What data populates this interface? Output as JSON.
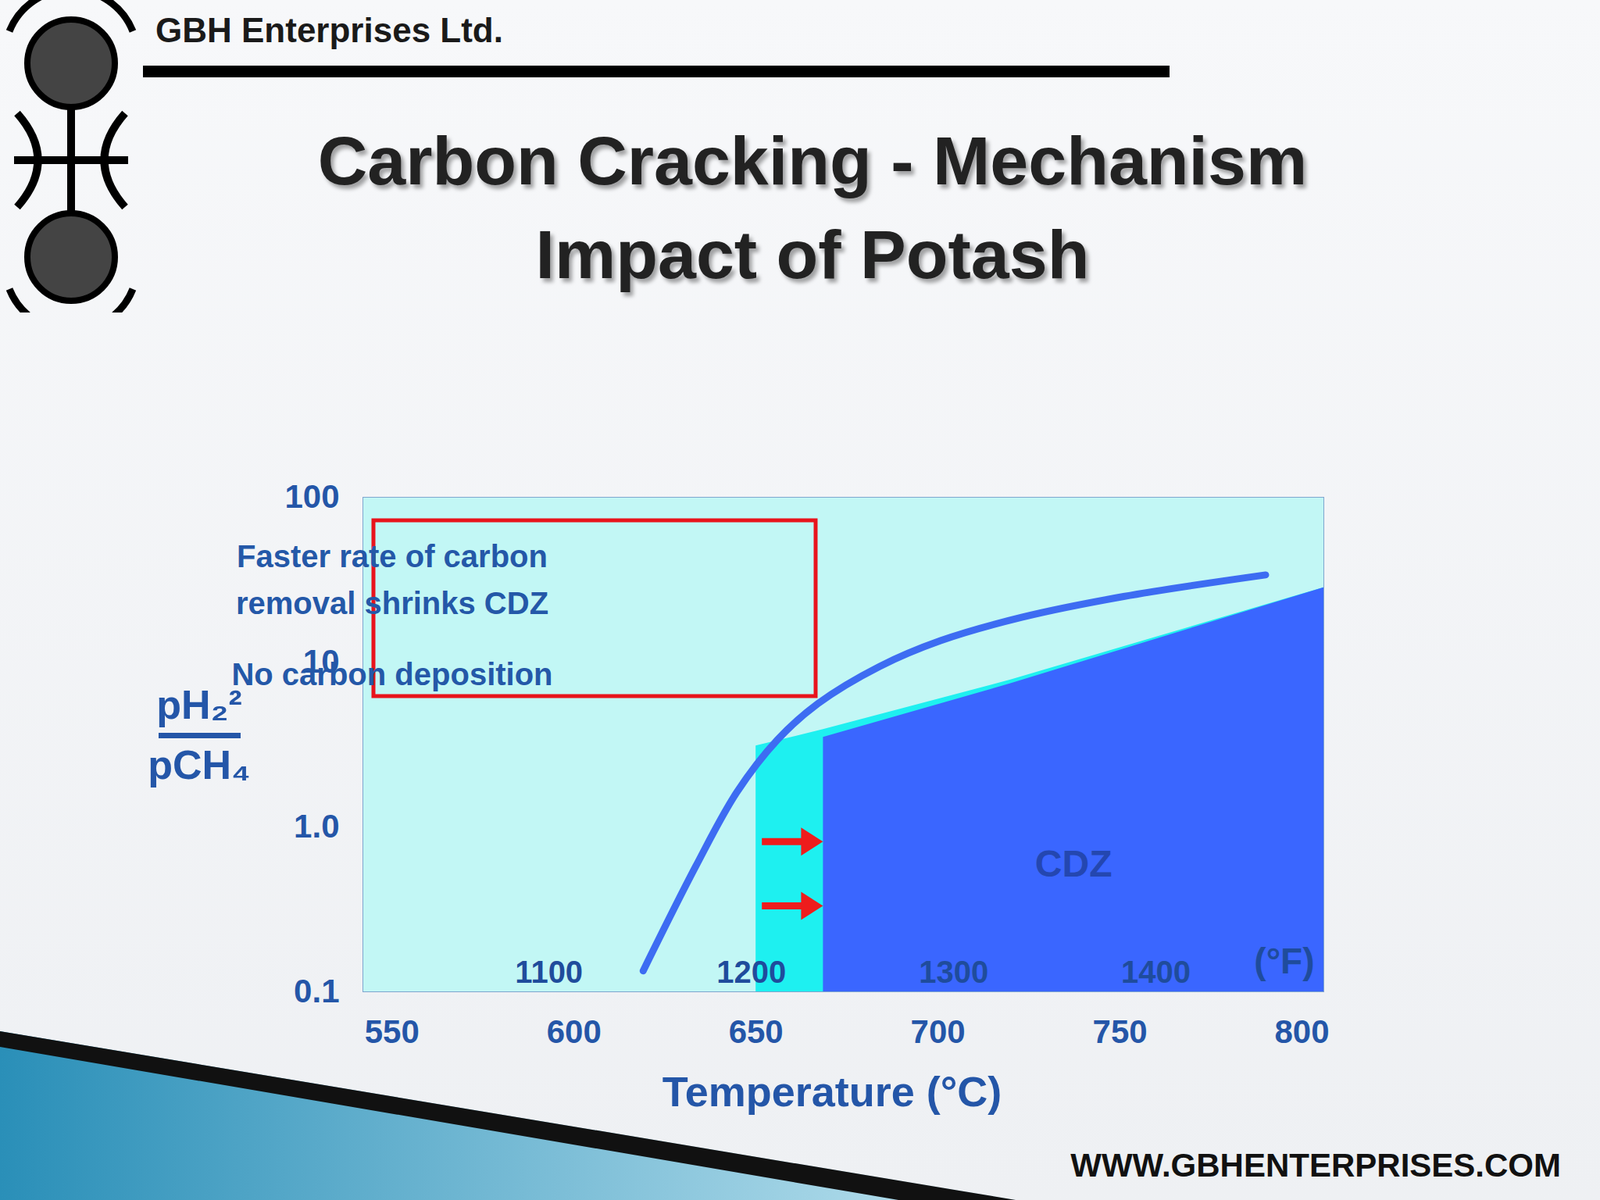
{
  "header": {
    "company": "GBH Enterprises Ltd.",
    "website": "WWW.GBHENTERPRISES.COM"
  },
  "chart_data": {
    "type": "line",
    "title": "Carbon Cracking - Mechanism",
    "subtitle": "Impact of Potash",
    "xlabel": "Temperature (°C)",
    "ylabel": {
      "numerator": "pH₂²",
      "denominator": "pCH₄"
    },
    "log": "y",
    "xlim": [
      542,
      806
    ],
    "xticks": [
      550,
      600,
      650,
      700,
      750,
      800
    ],
    "ylim": [
      0.1,
      100
    ],
    "yticks": [
      0.1,
      {
        "value": 1,
        "label": "1.0"
      },
      10,
      100
    ],
    "x2label": "(°F)",
    "x2lim": [
      1008,
      1483
    ],
    "x2ticks": [
      1100,
      1200,
      1300,
      1400
    ],
    "series": [
      {
        "type": "area",
        "color": "#1ef0f0",
        "x": [
          650,
          668.5,
          720,
          806
        ],
        "values": [
          3.1,
          3.9,
          7.8,
          28.3
        ]
      },
      {
        "name": "CDZ",
        "type": "area",
        "color": "#3a66ff",
        "x": [
          668.5,
          720,
          806
        ],
        "values": [
          3.5,
          7.4,
          28.3
        ]
      },
      {
        "type": "line",
        "color": "#3d6cf2",
        "x": [
          619,
          633.5,
          644.7,
          655.9,
          667,
          683.9,
          700.7,
          723,
          751,
          790
        ],
        "values": [
          0.134,
          0.58,
          1.62,
          3.38,
          5.6,
          9.4,
          13.5,
          18.7,
          25,
          33.8
        ]
      }
    ],
    "annotations": [
      "Faster rate of carbon\nremoval shrinks CDZ",
      "No carbon deposition"
    ]
  }
}
